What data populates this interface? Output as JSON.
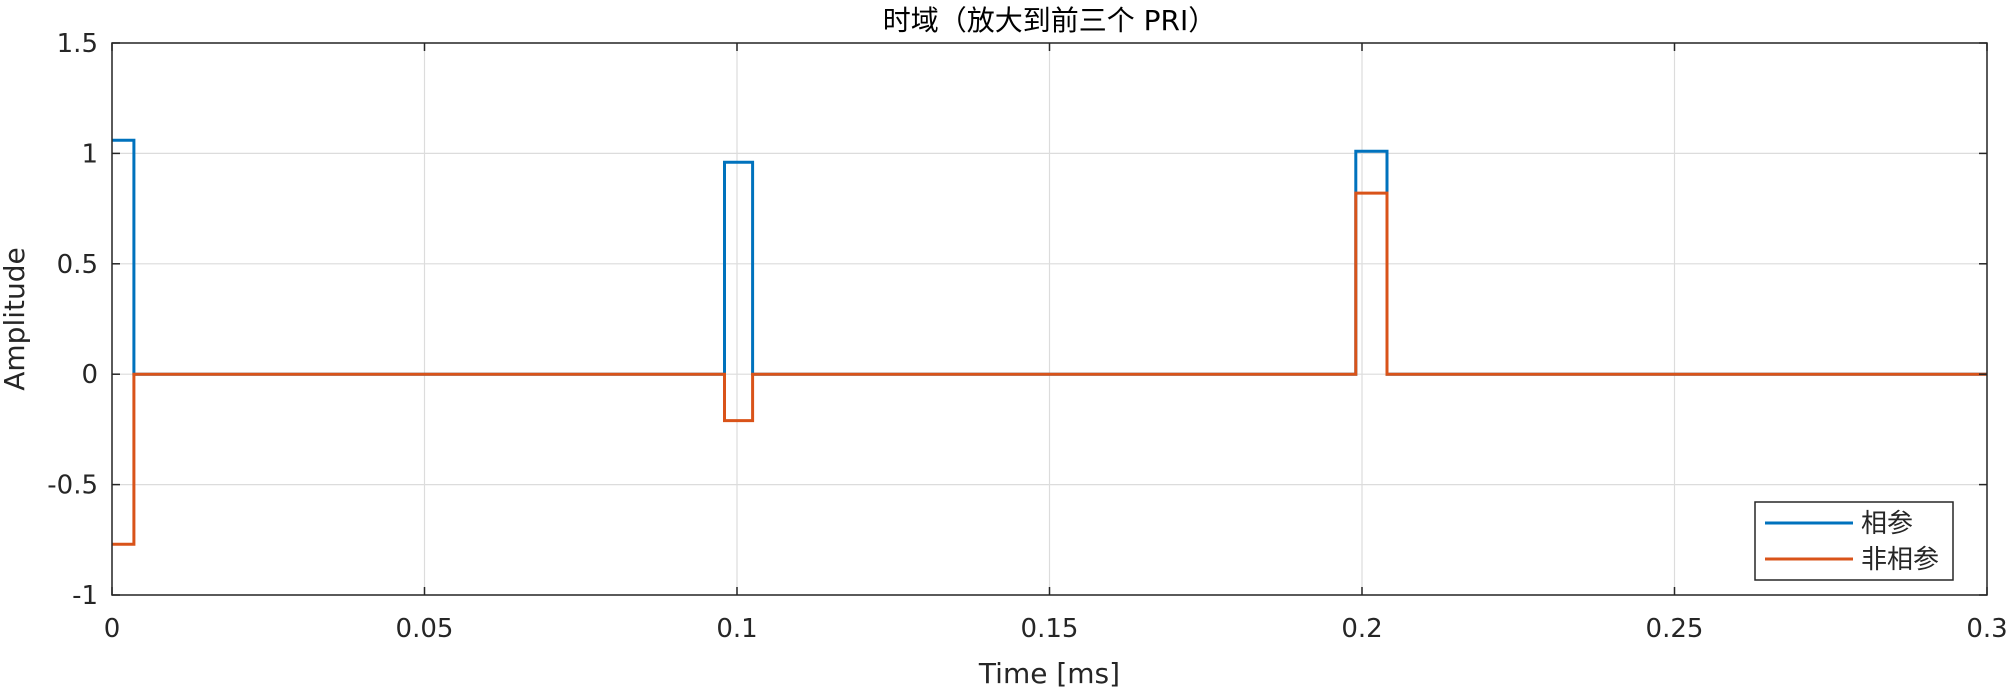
{
  "chart_data": {
    "type": "line",
    "title": "时域（放大到前三个 PRI）",
    "xlabel": "Time [ms]",
    "ylabel": "Amplitude",
    "xlim": [
      0,
      0.3
    ],
    "ylim": [
      -1,
      1.5
    ],
    "xticks": [
      0,
      0.05,
      0.1,
      0.15,
      0.2,
      0.25,
      0.3
    ],
    "xtick_labels": [
      "0",
      "0.05",
      "0.1",
      "0.15",
      "0.2",
      "0.25",
      "0.3"
    ],
    "yticks": [
      -1,
      -0.5,
      0,
      0.5,
      1,
      1.5
    ],
    "ytick_labels": [
      "-1",
      "-0.5",
      "0",
      "0.5",
      "1",
      "1.5"
    ],
    "grid": true,
    "legend_position": "bottom-right",
    "series": [
      {
        "name": "相参",
        "color": "#0072BD",
        "x": [
          0,
          0.0035,
          0.0035,
          0.098,
          0.098,
          0.1025,
          0.1025,
          0.199,
          0.199,
          0.204,
          0.204,
          0.3
        ],
        "y": [
          1.06,
          1.06,
          0,
          0,
          0.96,
          0.96,
          0,
          0,
          1.01,
          1.01,
          0,
          0
        ]
      },
      {
        "name": "非相参",
        "color": "#D95319",
        "x": [
          0,
          0.0035,
          0.0035,
          0.098,
          0.098,
          0.1025,
          0.1025,
          0.199,
          0.199,
          0.204,
          0.204,
          0.3
        ],
        "y": [
          -0.77,
          -0.77,
          0,
          0,
          -0.21,
          -0.21,
          0,
          0,
          0.82,
          0.82,
          0,
          0
        ]
      }
    ]
  }
}
